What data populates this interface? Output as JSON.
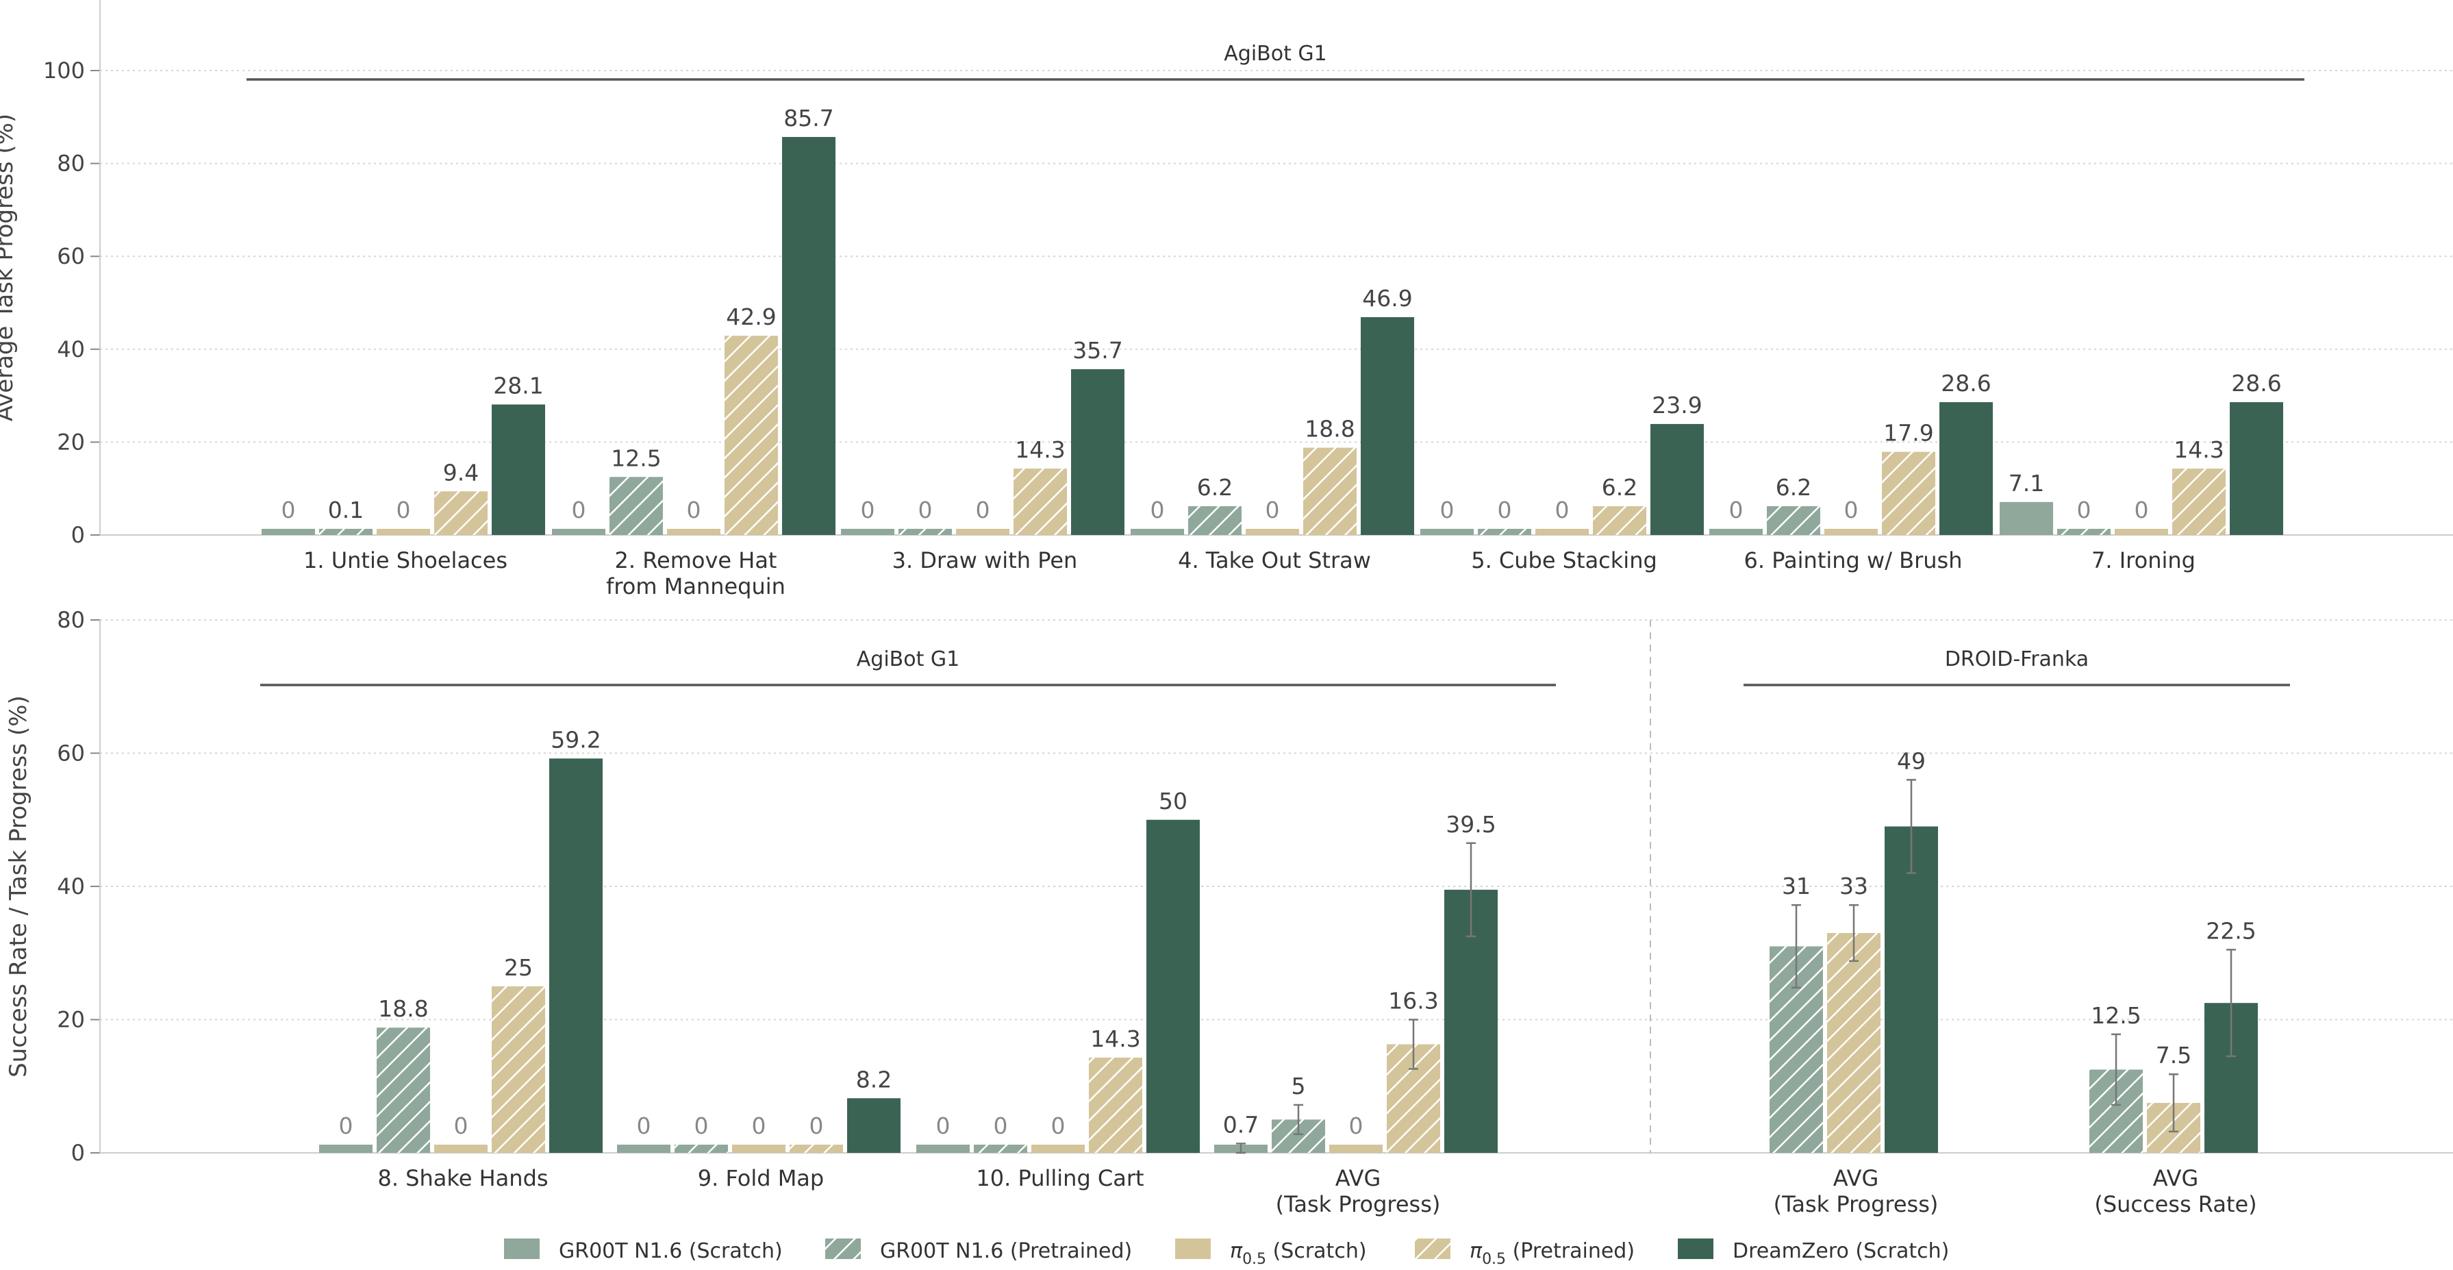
{
  "legend": [
    {
      "label": "GR00T N1.6 (Scratch)",
      "color": "#8fa89b",
      "hatch": false
    },
    {
      "label": "GR00T N1.6 (Pretrained)",
      "color": "#8fa89b",
      "hatch": true
    },
    {
      "label_main": "π",
      "label_sub": "0.5",
      "label_rest": " (Scratch)",
      "color": "#d4c49a",
      "hatch": false
    },
    {
      "label_main": "π",
      "label_sub": "0.5",
      "label_rest": " (Pretrained)",
      "color": "#d4c49a",
      "hatch": true
    },
    {
      "label": "DreamZero (Scratch)",
      "color": "#3b6354",
      "hatch": false
    }
  ],
  "chart_data": [
    {
      "type": "bar",
      "ylabel": "Average Task Progress (%)",
      "ylim": [
        0,
        100
      ],
      "yticks": [
        0,
        20,
        40,
        60,
        80,
        100
      ],
      "grid": true,
      "groups": [
        {
          "label": "AgiBot G1"
        }
      ],
      "categories": [
        [
          "1. Untie Shoelaces"
        ],
        [
          "2. Remove Hat",
          "from Mannequin"
        ],
        [
          "3. Draw with Pen"
        ],
        [
          "4. Take Out Straw"
        ],
        [
          "5. Cube Stacking"
        ],
        [
          "6. Painting w/ Brush"
        ],
        [
          "7. Ironing"
        ]
      ],
      "series": [
        {
          "name": "GR00T N1.6 (Scratch)",
          "values": [
            0,
            0,
            0,
            0,
            0,
            0,
            7.1
          ],
          "labels": [
            "0",
            "0",
            "0",
            "0",
            "0",
            "0",
            "7.1"
          ]
        },
        {
          "name": "GR00T N1.6 (Pretrained)",
          "values": [
            0.1,
            12.5,
            0,
            6.2,
            0,
            6.2,
            0
          ],
          "labels": [
            "0.1",
            "12.5",
            "0",
            "6.2",
            "0",
            "6.2",
            "0"
          ]
        },
        {
          "name": "π0.5 (Scratch)",
          "values": [
            0,
            0,
            0,
            0,
            0,
            0,
            0
          ],
          "labels": [
            "0",
            "0",
            "0",
            "0",
            "0",
            "0",
            "0"
          ]
        },
        {
          "name": "π0.5 (Pretrained)",
          "values": [
            9.4,
            42.9,
            14.3,
            18.8,
            6.2,
            17.9,
            14.3
          ],
          "labels": [
            "9.4",
            "42.9",
            "14.3",
            "18.8",
            "6.2",
            "17.9",
            "14.3"
          ]
        },
        {
          "name": "DreamZero (Scratch)",
          "values": [
            28.1,
            85.7,
            35.7,
            46.9,
            23.9,
            28.6,
            28.6
          ],
          "labels": [
            "28.1",
            "85.7",
            "35.7",
            "46.9",
            "23.9",
            "28.6",
            "28.6"
          ]
        }
      ]
    },
    {
      "type": "bar",
      "ylabel": "Success Rate / Task Progress (%)",
      "ylim": [
        0,
        80
      ],
      "yticks": [
        0,
        20,
        40,
        60,
        80
      ],
      "grid": true,
      "groups": [
        {
          "label": "AgiBot G1"
        },
        {
          "label": "DROID-Franka"
        }
      ],
      "categories": [
        [
          "8. Shake Hands"
        ],
        [
          "9. Fold Map"
        ],
        [
          "10. Pulling Cart"
        ],
        [
          "AVG",
          "(Task Progress)"
        ],
        [
          "AVG",
          "(Task Progress)"
        ],
        [
          "AVG",
          "(Success Rate)"
        ]
      ],
      "series": [
        {
          "name": "GR00T N1.6 (Scratch)",
          "values": [
            0,
            0,
            0,
            0.7,
            null,
            null
          ],
          "labels": [
            "0",
            "0",
            "0",
            "0.7",
            "",
            ""
          ],
          "errors": [
            null,
            null,
            null,
            0.7,
            null,
            null
          ]
        },
        {
          "name": "GR00T N1.6 (Pretrained)",
          "values": [
            18.8,
            0,
            0,
            5,
            31,
            12.5
          ],
          "labels": [
            "18.8",
            "0",
            "0",
            "5",
            "31",
            "12.5"
          ],
          "errors": [
            null,
            null,
            null,
            2.2,
            6.2,
            5.3
          ]
        },
        {
          "name": "π0.5 (Scratch)",
          "values": [
            0,
            0,
            0,
            0,
            null,
            null
          ],
          "labels": [
            "0",
            "0",
            "0",
            "0",
            "",
            ""
          ],
          "errors": [
            null,
            null,
            null,
            null,
            null,
            null
          ]
        },
        {
          "name": "π0.5 (Pretrained)",
          "values": [
            25,
            0,
            14.3,
            16.3,
            33,
            7.5
          ],
          "labels": [
            "25",
            "0",
            "14.3",
            "16.3",
            "33",
            "7.5"
          ],
          "errors": [
            null,
            null,
            null,
            3.7,
            4.2,
            4.3
          ]
        },
        {
          "name": "DreamZero (Scratch)",
          "values": [
            59.2,
            8.2,
            50,
            39.5,
            49,
            22.5
          ],
          "labels": [
            "59.2",
            "8.2",
            "50",
            "39.5",
            "49",
            "22.5"
          ],
          "errors": [
            null,
            null,
            null,
            7.0,
            7.0,
            8.0
          ]
        }
      ]
    }
  ]
}
